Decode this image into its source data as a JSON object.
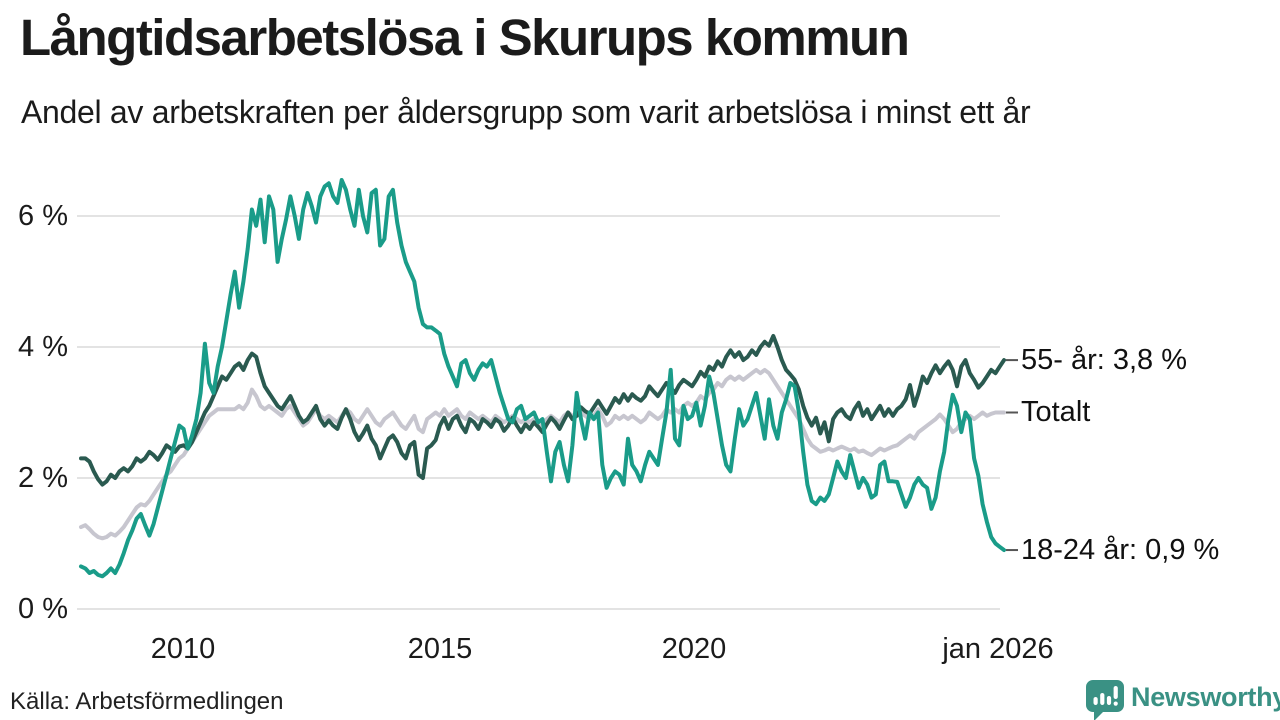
{
  "header": {
    "title": "Långtidsarbetslösa i Skurups kommun",
    "subtitle": "Andel av arbetskraften per åldersgrupp som varit arbetslösa i minst ett år"
  },
  "chart_data": {
    "type": "line",
    "title": "Långtidsarbetslösa i Skurups kommun",
    "subtitle": "Andel av arbetskraften per åldersgrupp som varit arbetslösa i minst ett år",
    "grid": true,
    "legend_position": "right-end-labels",
    "x_axis": {
      "start": "jan 2008",
      "end": "jan 2026",
      "points_per_year": 12,
      "ticks": [
        "2010",
        "2015",
        "2020",
        "jan 2026"
      ]
    },
    "y_axis": {
      "unit": "%",
      "range": [
        0,
        6.6
      ],
      "ticks": [
        {
          "label": "6 %",
          "value": 6
        },
        {
          "label": "4 %",
          "value": 4
        },
        {
          "label": "2 %",
          "value": 2
        },
        {
          "label": "0 %",
          "value": 0
        }
      ]
    },
    "series": [
      {
        "id": "55plus",
        "name": "55- år",
        "label": "55- år: 3,8 %",
        "end_value": 3.8,
        "color": "#2a5a50",
        "values": [
          2.3,
          2.3,
          2.25,
          2.1,
          1.98,
          1.9,
          1.95,
          2.05,
          2.0,
          2.1,
          2.15,
          2.1,
          2.18,
          2.3,
          2.25,
          2.3,
          2.4,
          2.35,
          2.28,
          2.38,
          2.5,
          2.45,
          2.4,
          2.48,
          2.5,
          2.45,
          2.55,
          2.7,
          2.85,
          3.0,
          3.1,
          3.25,
          3.4,
          3.55,
          3.5,
          3.6,
          3.7,
          3.75,
          3.65,
          3.8,
          3.9,
          3.85,
          3.6,
          3.4,
          3.3,
          3.2,
          3.1,
          3.05,
          3.15,
          3.25,
          3.1,
          2.95,
          2.85,
          2.9,
          3.0,
          3.1,
          2.9,
          2.8,
          2.88,
          2.8,
          2.75,
          2.92,
          3.05,
          2.9,
          2.7,
          2.58,
          2.68,
          2.8,
          2.6,
          2.5,
          2.3,
          2.45,
          2.6,
          2.65,
          2.55,
          2.38,
          2.3,
          2.5,
          2.55,
          2.05,
          2.0,
          2.45,
          2.5,
          2.58,
          2.8,
          2.92,
          2.75,
          2.9,
          2.95,
          2.8,
          2.7,
          2.9,
          2.85,
          2.75,
          2.9,
          2.85,
          2.78,
          2.9,
          2.85,
          2.72,
          2.8,
          2.92,
          2.8,
          2.7,
          2.82,
          2.75,
          2.85,
          2.78,
          2.7,
          2.82,
          2.92,
          2.85,
          2.75,
          2.88,
          3.0,
          2.9,
          2.95,
          3.08,
          3.02,
          2.98,
          3.08,
          3.18,
          3.08,
          2.98,
          3.1,
          3.22,
          3.15,
          3.28,
          3.18,
          3.28,
          3.22,
          3.18,
          3.25,
          3.4,
          3.32,
          3.25,
          3.35,
          3.45,
          3.38,
          3.3,
          3.42,
          3.5,
          3.45,
          3.4,
          3.5,
          3.62,
          3.55,
          3.7,
          3.65,
          3.78,
          3.7,
          3.85,
          3.95,
          3.85,
          3.92,
          3.8,
          3.85,
          3.95,
          3.88,
          4.0,
          4.08,
          4.02,
          4.17,
          4.0,
          3.8,
          3.65,
          3.58,
          3.5,
          3.35,
          3.1,
          2.92,
          2.8,
          2.92,
          2.68,
          2.85,
          2.56,
          2.9,
          3.0,
          3.05,
          2.95,
          2.9,
          3.05,
          3.15,
          2.95,
          3.05,
          2.9,
          3.0,
          3.1,
          2.95,
          3.05,
          2.95,
          3.05,
          3.1,
          3.2,
          3.42,
          3.1,
          3.3,
          3.55,
          3.45,
          3.6,
          3.72,
          3.6,
          3.7,
          3.78,
          3.65,
          3.4,
          3.7,
          3.8,
          3.6,
          3.5,
          3.38,
          3.45,
          3.55,
          3.65,
          3.6,
          3.7,
          3.8
        ]
      },
      {
        "id": "totalt",
        "name": "Totalt",
        "label": "Totalt",
        "end_value": 3.0,
        "color": "#c7c6cf",
        "values": [
          1.25,
          1.28,
          1.22,
          1.15,
          1.1,
          1.08,
          1.1,
          1.15,
          1.12,
          1.18,
          1.25,
          1.35,
          1.45,
          1.55,
          1.6,
          1.58,
          1.65,
          1.75,
          1.85,
          1.95,
          2.05,
          2.1,
          2.2,
          2.3,
          2.35,
          2.45,
          2.55,
          2.65,
          2.75,
          2.85,
          2.95,
          3.0,
          3.05,
          3.05,
          3.05,
          3.05,
          3.05,
          3.1,
          3.05,
          3.15,
          3.35,
          3.25,
          3.1,
          3.05,
          3.1,
          3.05,
          3.0,
          2.95,
          3.05,
          3.1,
          3.0,
          2.9,
          2.8,
          2.85,
          2.95,
          3.05,
          2.95,
          2.9,
          2.95,
          2.9,
          2.85,
          2.95,
          3.05,
          3.0,
          2.9,
          2.85,
          2.95,
          3.05,
          2.95,
          2.85,
          2.8,
          2.9,
          2.95,
          3.0,
          2.9,
          2.8,
          2.75,
          2.85,
          2.95,
          2.75,
          2.7,
          2.9,
          2.95,
          3.0,
          2.95,
          3.05,
          2.95,
          3.0,
          3.05,
          2.95,
          2.9,
          3.0,
          2.95,
          2.9,
          2.95,
          2.9,
          2.85,
          2.95,
          2.9,
          2.85,
          2.9,
          2.95,
          2.9,
          2.85,
          2.9,
          2.85,
          2.9,
          2.85,
          2.8,
          2.9,
          2.95,
          2.9,
          2.85,
          2.95,
          3.0,
          2.95,
          2.95,
          3.0,
          2.95,
          2.9,
          2.95,
          3.05,
          2.95,
          2.8,
          2.85,
          2.95,
          2.9,
          2.95,
          2.9,
          2.95,
          2.9,
          2.85,
          2.9,
          3.0,
          2.95,
          2.9,
          2.95,
          3.05,
          3.0,
          3.05,
          3.0,
          3.1,
          3.15,
          3.1,
          3.15,
          3.25,
          3.2,
          3.3,
          3.35,
          3.45,
          3.4,
          3.5,
          3.55,
          3.5,
          3.55,
          3.5,
          3.55,
          3.6,
          3.65,
          3.6,
          3.65,
          3.6,
          3.5,
          3.4,
          3.3,
          3.2,
          3.1,
          3.0,
          2.9,
          2.75,
          2.6,
          2.5,
          2.45,
          2.4,
          2.42,
          2.45,
          2.42,
          2.45,
          2.48,
          2.45,
          2.42,
          2.45,
          2.4,
          2.42,
          2.38,
          2.35,
          2.4,
          2.45,
          2.42,
          2.45,
          2.48,
          2.5,
          2.55,
          2.6,
          2.65,
          2.6,
          2.7,
          2.75,
          2.8,
          2.85,
          2.9,
          2.97,
          2.9,
          2.8,
          2.7,
          2.75,
          2.85,
          2.9,
          2.95,
          2.9,
          2.95,
          3.0,
          2.95,
          2.98,
          3.0,
          3.0,
          3.0
        ]
      },
      {
        "id": "18-24",
        "name": "18-24 år",
        "label": "18-24 år: 0,9 %",
        "end_value": 0.9,
        "color": "#1a9c89",
        "values": [
          0.65,
          0.62,
          0.55,
          0.58,
          0.52,
          0.5,
          0.55,
          0.62,
          0.55,
          0.68,
          0.85,
          1.05,
          1.2,
          1.38,
          1.45,
          1.28,
          1.12,
          1.3,
          1.55,
          1.8,
          2.05,
          2.3,
          2.55,
          2.8,
          2.75,
          2.45,
          2.65,
          2.9,
          3.3,
          4.05,
          3.45,
          3.3,
          3.7,
          4.0,
          4.4,
          4.8,
          5.15,
          4.6,
          5.0,
          5.5,
          6.1,
          5.85,
          6.25,
          5.6,
          6.3,
          6.1,
          5.3,
          5.65,
          5.95,
          6.3,
          6.0,
          5.65,
          6.1,
          6.35,
          6.15,
          5.9,
          6.3,
          6.45,
          6.5,
          6.3,
          6.2,
          6.55,
          6.4,
          6.1,
          5.85,
          6.4,
          6.0,
          5.75,
          6.35,
          6.4,
          5.55,
          5.65,
          6.3,
          6.4,
          5.9,
          5.55,
          5.3,
          5.15,
          5.0,
          4.6,
          4.35,
          4.3,
          4.3,
          4.25,
          4.2,
          3.9,
          3.7,
          3.55,
          3.4,
          3.75,
          3.8,
          3.6,
          3.5,
          3.65,
          3.75,
          3.7,
          3.8,
          3.55,
          3.3,
          3.1,
          2.9,
          2.85,
          3.05,
          3.1,
          2.9,
          2.95,
          3.0,
          2.85,
          2.9,
          2.4,
          1.95,
          2.4,
          2.55,
          2.2,
          1.95,
          2.5,
          3.3,
          2.9,
          2.6,
          3.0,
          2.9,
          3.0,
          2.2,
          1.85,
          2.0,
          2.1,
          2.05,
          1.9,
          2.6,
          2.2,
          2.1,
          1.95,
          2.2,
          2.4,
          2.3,
          2.2,
          2.6,
          3.0,
          3.65,
          2.6,
          2.5,
          3.1,
          2.9,
          2.95,
          3.15,
          2.8,
          3.1,
          3.55,
          3.3,
          2.9,
          2.5,
          2.2,
          2.1,
          2.6,
          3.05,
          2.8,
          2.9,
          3.1,
          3.3,
          2.95,
          2.6,
          3.2,
          2.8,
          2.6,
          3.0,
          3.2,
          3.45,
          3.4,
          3.0,
          2.4,
          1.9,
          1.65,
          1.6,
          1.7,
          1.65,
          1.75,
          2.0,
          2.25,
          2.1,
          2.0,
          2.35,
          2.1,
          1.85,
          2.0,
          1.9,
          1.7,
          1.75,
          2.2,
          2.25,
          1.95,
          1.95,
          1.94,
          1.75,
          1.56,
          1.7,
          1.9,
          2.0,
          1.9,
          1.85,
          1.53,
          1.7,
          2.1,
          2.4,
          2.9,
          3.27,
          3.1,
          2.7,
          3.0,
          2.9,
          2.3,
          2.03,
          1.6,
          1.33,
          1.1,
          1.0,
          0.95,
          0.9
        ]
      }
    ]
  },
  "footer": {
    "source": "Källa: Arbetsförmedlingen",
    "brand": {
      "name": "Newsworthy",
      "icon": "newsworthy-speech-bubble-chart-icon",
      "color": "#3a9184"
    }
  },
  "colors": {
    "background": "#ffffff",
    "text": "#1b1b1b",
    "gridline": "#e3e3e3",
    "end_label_tick": "#555555",
    "series_55plus": "#2a5a50",
    "series_totalt": "#c7c6cf",
    "series_18_24": "#1a9c89",
    "brand_teal": "#3a9184"
  }
}
